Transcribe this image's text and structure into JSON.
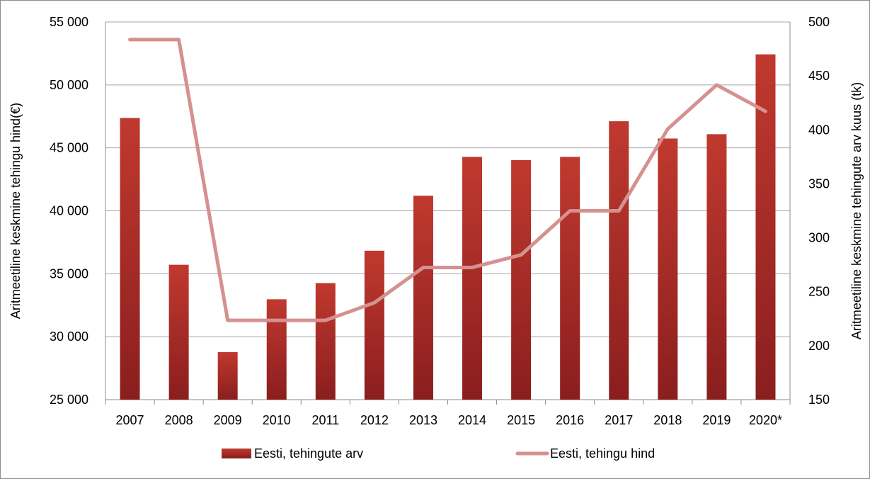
{
  "chart_data": {
    "type": "bar+line",
    "categories": [
      "2007",
      "2008",
      "2009",
      "2010",
      "2011",
      "2012",
      "2013",
      "2014",
      "2015",
      "2016",
      "2017",
      "2018",
      "2019",
      "2020*"
    ],
    "series": [
      {
        "name": "Eesti, tehingute arv",
        "type": "bar",
        "axis": "right",
        "values": [
          411,
          275,
          194,
          243,
          258,
          288,
          339,
          375,
          372,
          375,
          408,
          392,
          396,
          470
        ]
      },
      {
        "name": "Eesti, tehingu hind",
        "type": "line",
        "axis": "left",
        "values": [
          53600,
          53600,
          31300,
          31300,
          31300,
          32700,
          35500,
          35500,
          36500,
          40000,
          40000,
          46500,
          50000,
          47900
        ]
      }
    ],
    "y_left": {
      "label": "Aritmeetiline keskmine tehingu hind(€)",
      "min": 25000,
      "max": 55000,
      "step": 5000,
      "tick_labels": [
        "25 000",
        "30 000",
        "35 000",
        "40 000",
        "45 000",
        "50 000",
        "55 000"
      ]
    },
    "y_right": {
      "label": "Aritmeetiline keskmine tehingute arv kuus (tk)",
      "min": 150,
      "max": 500,
      "step": 50,
      "tick_labels": [
        "150",
        "200",
        "250",
        "300",
        "350",
        "400",
        "450",
        "500"
      ]
    },
    "grid": true,
    "legend": "bottom",
    "colors": {
      "bar_top": "#c0392f",
      "bar_bottom": "#8a1e1e",
      "line": "#d4918f",
      "grid": "#a6a6a6"
    }
  }
}
